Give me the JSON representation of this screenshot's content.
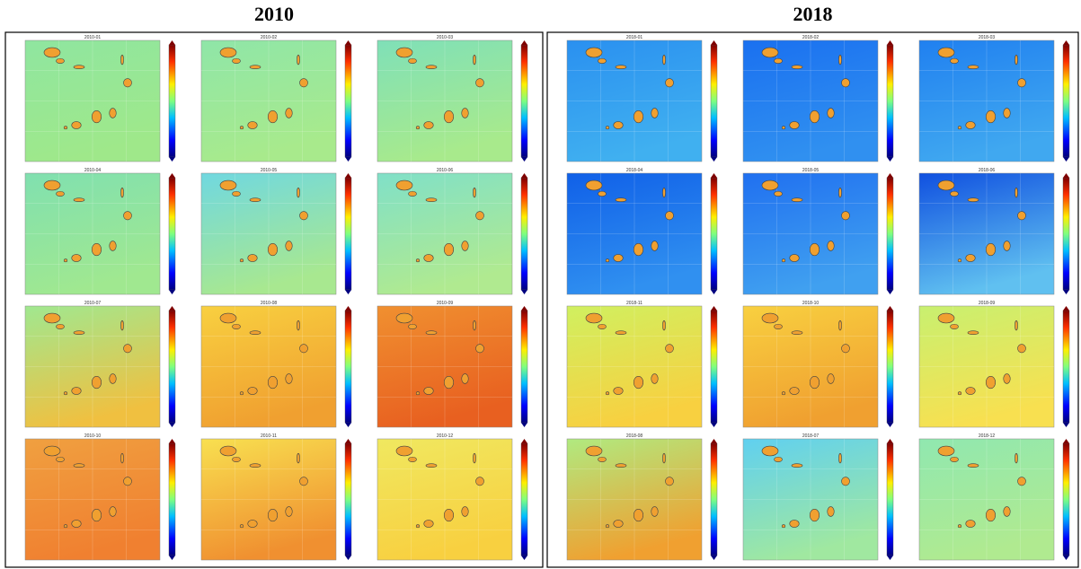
{
  "panels": [
    {
      "title": "2010",
      "maps": [
        {
          "title": "2010-01"
        },
        {
          "title": "2010-02"
        },
        {
          "title": "2010-03"
        },
        {
          "title": "2010-04"
        },
        {
          "title": "2010-05"
        },
        {
          "title": "2010-06"
        },
        {
          "title": "2010-07"
        },
        {
          "title": "2010-08"
        },
        {
          "title": "2010-09"
        },
        {
          "title": "2010-10"
        },
        {
          "title": "2010-11"
        },
        {
          "title": "2010-12"
        }
      ]
    },
    {
      "title": "2018",
      "maps": [
        {
          "title": "2018-01"
        },
        {
          "title": "2018-02"
        },
        {
          "title": "2018-03"
        },
        {
          "title": "2018-04"
        },
        {
          "title": "2018-05"
        },
        {
          "title": "2018-06"
        },
        {
          "title": "2018-11"
        },
        {
          "title": "2018-10"
        },
        {
          "title": "2018-09"
        },
        {
          "title": "2018-08"
        },
        {
          "title": "2018-07"
        },
        {
          "title": "2018-12"
        }
      ]
    }
  ]
}
